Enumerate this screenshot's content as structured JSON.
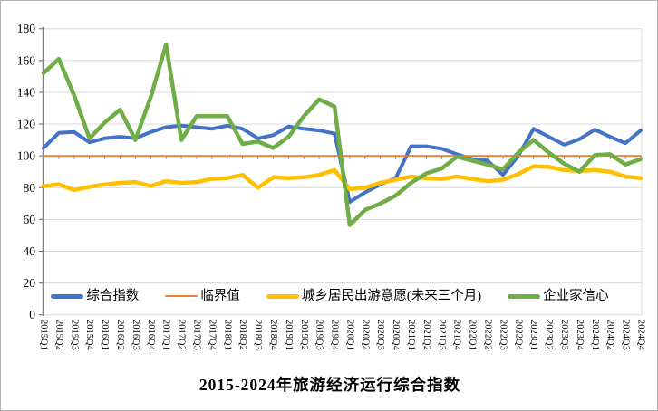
{
  "page": {
    "title": "2015-2024年旅游经济运行综合指数"
  },
  "chart_data": {
    "type": "line",
    "title": "2015-2024年旅游经济运行综合指数",
    "xlabel": "",
    "ylabel": "",
    "ylim": [
      0,
      180
    ],
    "ytick_step": 20,
    "grid": true,
    "legend_position": "bottom-inside",
    "grid_color": "#d9d9d9",
    "axis_color": "#7f7f7f",
    "tick_label_color": "#000000",
    "categories": [
      "2015Q1",
      "2015Q2",
      "2015Q3",
      "2015Q4",
      "2016Q1",
      "2016Q2",
      "2016Q3",
      "2016Q4",
      "2017Q1",
      "2017Q2",
      "2017Q3",
      "2017Q4",
      "2018Q1",
      "2018Q2",
      "2018Q3",
      "2018Q4",
      "2019Q1",
      "2019Q2",
      "2019Q3",
      "2019Q4",
      "2020Q1",
      "2020Q2",
      "2020Q3",
      "2020Q4",
      "2021Q1",
      "2021Q2",
      "2021Q3",
      "2021Q4",
      "2022Q1",
      "2022Q2",
      "2022Q3",
      "2022Q4",
      "2023Q1",
      "2023Q2",
      "2023Q3",
      "2023Q4",
      "2024Q1",
      "2024Q2",
      "2024Q3",
      "2024Q4"
    ],
    "series": [
      {
        "name": "综合指数",
        "color": "#4472c4",
        "stroke_width": 4,
        "values": [
          105,
          114.5,
          115,
          108.5,
          111,
          112,
          111,
          115,
          118,
          119,
          118,
          117,
          119,
          117,
          111,
          113,
          118.5,
          117,
          116,
          114,
          71,
          77,
          82,
          86,
          106,
          106,
          104.5,
          101,
          98,
          97,
          88,
          100,
          117,
          112,
          107,
          110.5,
          116.5,
          112,
          108,
          116
        ]
      },
      {
        "name": "临界值",
        "color": "#ed7d31",
        "stroke_width": 1.8,
        "values": [
          100,
          100,
          100,
          100,
          100,
          100,
          100,
          100,
          100,
          100,
          100,
          100,
          100,
          100,
          100,
          100,
          100,
          100,
          100,
          100,
          100,
          100,
          100,
          100,
          100,
          100,
          100,
          100,
          100,
          100,
          100,
          100,
          100,
          100,
          100,
          100,
          100,
          100,
          100,
          100
        ]
      },
      {
        "name": "城乡居民出游意愿(未来三个月)",
        "color": "#ffc000",
        "stroke_width": 4.5,
        "values": [
          81,
          82,
          78.5,
          80.5,
          82,
          83,
          83.5,
          81,
          84,
          83,
          83.5,
          85.5,
          86,
          88,
          80,
          86.5,
          86,
          86.5,
          88,
          91,
          79,
          80,
          83,
          85,
          87,
          86,
          85.5,
          87,
          85.5,
          84,
          85,
          88.5,
          93.5,
          93,
          91,
          90.5,
          91,
          90,
          87,
          86
        ]
      },
      {
        "name": "企业家信心",
        "color": "#70ad47",
        "stroke_width": 4.5,
        "values": [
          152,
          161,
          138,
          111,
          121,
          129,
          110,
          137,
          170,
          110,
          125,
          125,
          125,
          107.5,
          109,
          105,
          112,
          125,
          135.5,
          131,
          56.5,
          66,
          70,
          75,
          83,
          89,
          92,
          99.5,
          97,
          94.5,
          91.5,
          102,
          110,
          102,
          95,
          90,
          100.5,
          101,
          94.5,
          98
        ]
      }
    ]
  }
}
